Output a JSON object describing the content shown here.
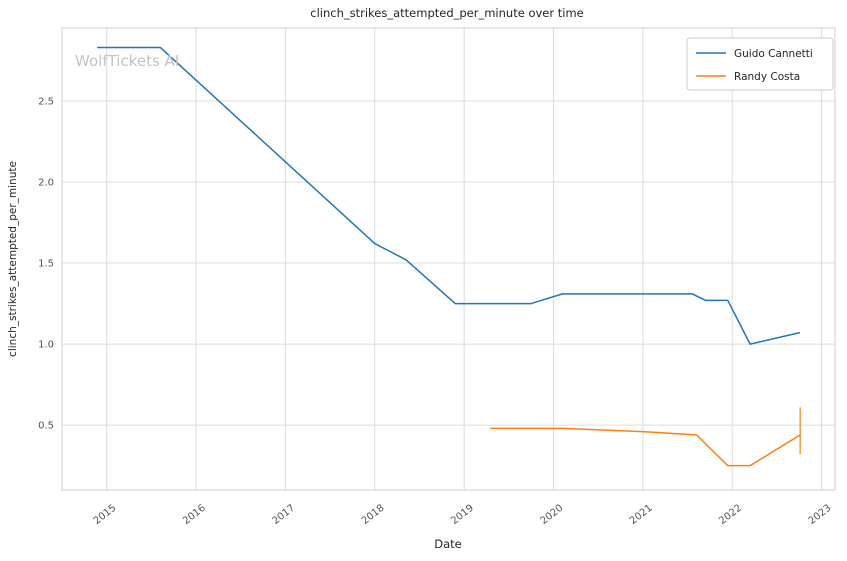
{
  "watermark": "WolfTickets AI",
  "colors": {
    "grid": "#dcdcdc",
    "spine": "#cccccc",
    "text": "#262626",
    "tick_text": "#555555",
    "watermark": "#c3c3c3",
    "background": "#ffffff"
  },
  "chart_data": {
    "type": "line",
    "title": "clinch_strikes_attempted_per_minute over time",
    "xlabel": "Date",
    "ylabel": "clinch_strikes_attempted_per_minute",
    "grid": true,
    "legend_position": "upper right",
    "xlim": [
      2014.5,
      2023.15
    ],
    "ylim": [
      0.1,
      2.95
    ],
    "x_tick_values": [
      2015,
      2016,
      2017,
      2018,
      2019,
      2020,
      2021,
      2022,
      2023
    ],
    "x_tick_labels": [
      "2015",
      "2016",
      "2017",
      "2018",
      "2019",
      "2020",
      "2021",
      "2022",
      "2023"
    ],
    "y_tick_values": [
      0.5,
      1.0,
      1.5,
      2.0,
      2.5
    ],
    "y_tick_labels": [
      "0.5",
      "1.0",
      "1.5",
      "2.0",
      "2.5"
    ],
    "series": [
      {
        "name": "Guido Cannetti",
        "color": "#1f77b4",
        "points": [
          [
            2014.9,
            2.83
          ],
          [
            2015.6,
            2.83
          ],
          [
            2018.0,
            1.62
          ],
          [
            2018.35,
            1.52
          ],
          [
            2018.9,
            1.25
          ],
          [
            2019.75,
            1.25
          ],
          [
            2020.1,
            1.31
          ],
          [
            2021.55,
            1.31
          ],
          [
            2021.7,
            1.27
          ],
          [
            2021.95,
            1.27
          ],
          [
            2022.2,
            1.0
          ],
          [
            2022.75,
            1.07
          ]
        ]
      },
      {
        "name": "Randy Costa",
        "color": "#ff7f0e",
        "points": [
          [
            2019.3,
            0.48
          ],
          [
            2020.1,
            0.48
          ],
          [
            2021.0,
            0.46
          ],
          [
            2021.6,
            0.44
          ],
          [
            2021.95,
            0.25
          ],
          [
            2022.2,
            0.25
          ],
          [
            2022.76,
            0.44
          ]
        ]
      }
    ],
    "error_bar": {
      "series": "Randy Costa",
      "x": 2022.76,
      "y_low": 0.32,
      "y_high": 0.61
    }
  }
}
